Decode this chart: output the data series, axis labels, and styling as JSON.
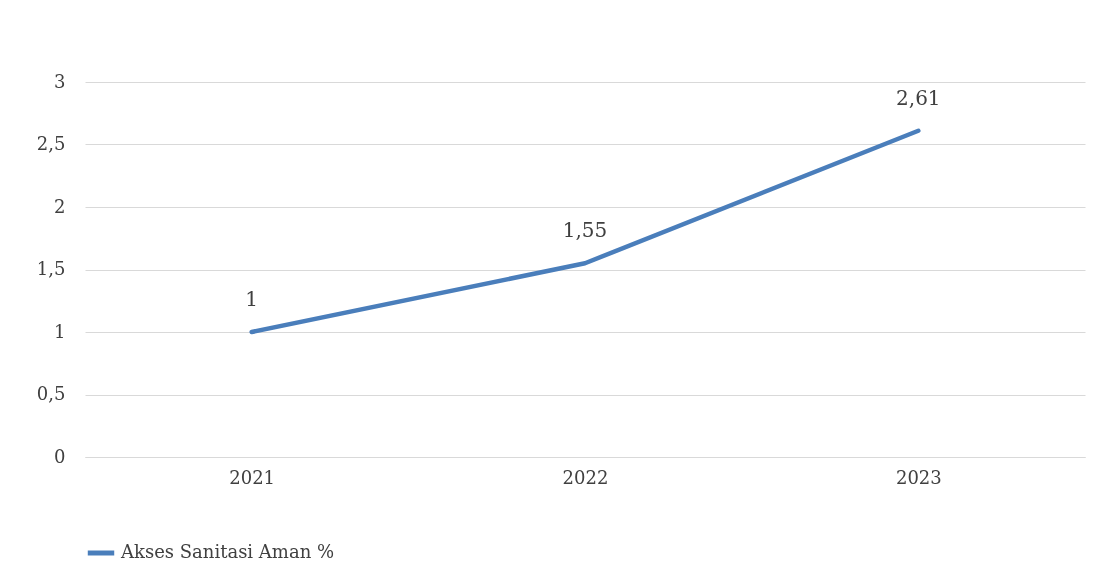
{
  "chart_data": {
    "type": "line",
    "categories": [
      "2021",
      "2022",
      "2023"
    ],
    "series": [
      {
        "name": "Akses Sanitasi Aman %",
        "color": "#4a7ebb",
        "values": [
          1,
          1.55,
          2.61
        ],
        "value_labels": [
          "1",
          "1,55",
          "2,61"
        ]
      }
    ],
    "ylim": [
      0,
      3
    ],
    "yticks": [
      0,
      {
        "value": 0.5,
        "label": "0,5"
      },
      1,
      {
        "value": 1.5,
        "label": "1,5"
      },
      2,
      {
        "value": 2.5,
        "label": "2,5"
      },
      3
    ],
    "grid": "y",
    "legend": "bottom",
    "marker": "none",
    "line_style": "solid"
  }
}
